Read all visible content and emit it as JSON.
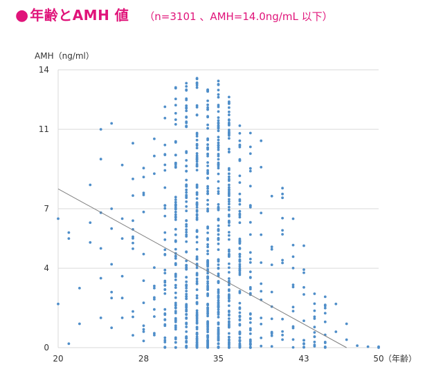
{
  "header": {
    "bullet": "●",
    "title": "年齢とAMH 値",
    "subtitle": "（n=3101 、AMH=14.0ng/mL 以下）",
    "color": "#e0147a"
  },
  "chart_data": {
    "type": "scatter",
    "title": "年齢とAMH 値",
    "subtitle": "（n=3101 、AMH=14.0ng/mL 以下）",
    "ylabel": "AMH（ng/ml）",
    "xlabel": "（年齢）",
    "x_ticks": [
      "20",
      "28",
      "35",
      "43",
      "50"
    ],
    "y_ticks": [
      "0",
      "4",
      "7",
      "11",
      "14"
    ],
    "xlim": [
      20,
      50
    ],
    "ylim": [
      0,
      14
    ],
    "grid": "horizontal",
    "point_color": "#4f8ec9",
    "trend_color": "#7f7f7f",
    "trendline": {
      "x": [
        20,
        47
      ],
      "y": [
        8.0,
        0
      ]
    },
    "points": {
      "x": [
        20,
        20,
        21,
        21,
        21,
        22,
        22,
        23,
        23,
        23,
        24,
        24,
        24,
        24,
        24,
        24,
        25,
        25,
        25,
        25,
        25,
        25,
        25,
        26,
        26,
        26,
        26,
        26,
        26,
        46,
        46,
        47,
        47,
        48,
        49,
        50,
        50
      ],
      "y": [
        6.5,
        2.2,
        5.8,
        5.5,
        0.2,
        1.2,
        3.0,
        8.2,
        6.3,
        5.3,
        11.0,
        9.5,
        6.8,
        5.0,
        3.5,
        1.5,
        11.3,
        7.0,
        6.0,
        4.2,
        2.8,
        2.5,
        1.0,
        9.2,
        6.5,
        5.5,
        3.6,
        2.5,
        1.5,
        2.2,
        0.8,
        1.2,
        0.4,
        0.1,
        0.05,
        0.05,
        0.0
      ],
      "dense_age_range": [
        27,
        45
      ],
      "peak_age": 34
    }
  }
}
